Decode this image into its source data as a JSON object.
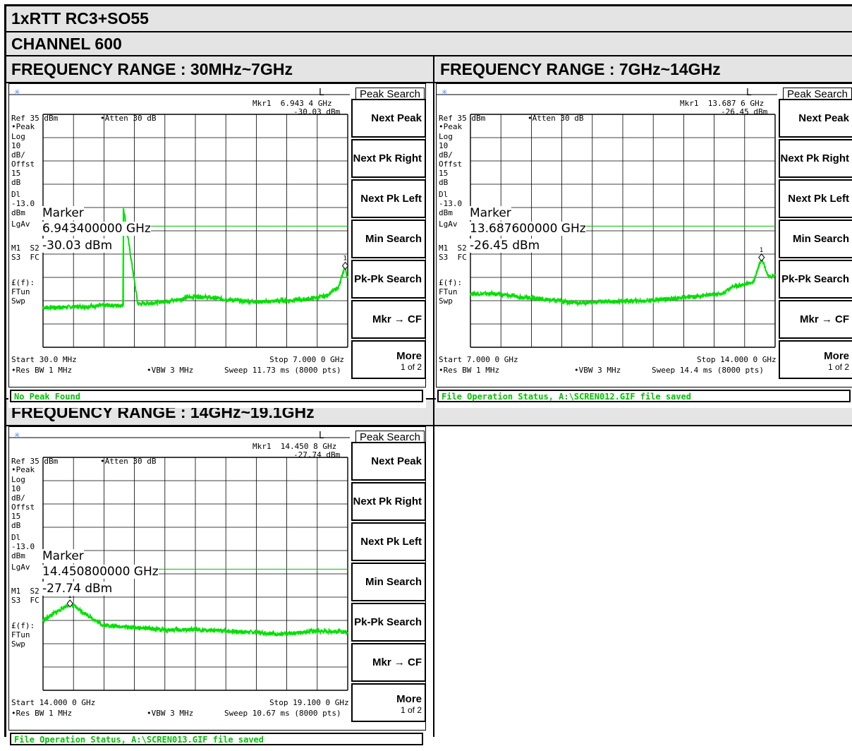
{
  "title": "1xRTT RC3+SO55",
  "channel": "CHANNEL 600",
  "range_titles": [
    "FREQUENCY RANGE : 30MHz~7GHz",
    "FREQUENCY RANGE : 7GHz~14GHz",
    "FREQUENCY RANGE : 14GHz~19.1GHz"
  ],
  "softkeys": {
    "title": "Peak Search",
    "items": [
      "Next Peak",
      "Next Pk Right",
      "Next Pk Left",
      "Min Search",
      "Pk-Pk Search",
      "Mkr → CF"
    ],
    "more": "More",
    "more_sub": "1 of 2"
  },
  "left_labels": {
    "peak": "•Peak",
    "log": "Log",
    "ten": "10",
    "dbdiv": "dB/",
    "offst": "Offst",
    "fifteen": "15",
    "db": "dB",
    "dl": "Dl",
    "dlval": "-13.0",
    "dbm": "dBm",
    "lgav": "LgAv",
    "m1s2": "M1  S2",
    "s3fc": "S3  FC",
    "ff": "£(f):",
    "ftun": "FTun",
    "swp": "Swp"
  },
  "L_label": "L",
  "icon": "sun-icon",
  "colors": {
    "trace": "#00e000",
    "display_line": "#00c000",
    "grid": "#000000",
    "status": "#00c000",
    "header_bg": "#e4e4e4"
  },
  "screens": [
    {
      "ref": "Ref 35 dBm",
      "atten": "•Atten 30 dB",
      "mkr_line1": "Mkr1  6.943 4 GHz",
      "mkr_line2": "-30.03 dBm",
      "marker_label": "Marker",
      "marker_freq": "6.943400000 GHz",
      "marker_amp": "-30.03 dBm",
      "marker_num": "1",
      "start": "Start 30.0 MHz",
      "stop": "Stop 7.000 0 GHz",
      "resbw": "•Res BW 1 MHz",
      "vbw": "•VBW 3 MHz",
      "sweep": "Sweep 11.73 ms (8000 pts)",
      "status": "No Peak Found"
    },
    {
      "ref": "Ref 35 dBm",
      "atten": "•Atten 30 dB",
      "mkr_line1": "Mkr1  13.687 6 GHz",
      "mkr_line2": "-26.45 dBm",
      "marker_label": "Marker",
      "marker_freq": "13.687600000 GHz",
      "marker_amp": "-26.45 dBm",
      "marker_num": "1",
      "start": "Start 7.000 0 GHz",
      "stop": "Stop 14.000 0 GHz",
      "resbw": "•Res BW 1 MHz",
      "vbw": "•VBW 3 MHz",
      "sweep": "Sweep 14.4 ms (8000 pts)",
      "status": "File Operation Status, A:\\SCREN012.GIF file saved"
    },
    {
      "ref": "Ref 35 dBm",
      "atten": "•Atten 30 dB",
      "mkr_line1": "Mkr1  14.450 8 GHz",
      "mkr_line2": "-27.74 dBm",
      "marker_label": "Marker",
      "marker_freq": "14.450800000 GHz",
      "marker_amp": "-27.74 dBm",
      "marker_num": "1",
      "start": "Start 14.000 0 GHz",
      "stop": "Stop 19.100 0 GHz",
      "resbw": "•Res BW 1 MHz",
      "vbw": "•VBW 3 MHz",
      "sweep": "Sweep 10.67 ms (8000 pts)",
      "status": "File Operation Status, A:\\SCREN013.GIF file saved"
    }
  ],
  "chart_data": [
    {
      "type": "line",
      "xlabel": "",
      "ylabel": "",
      "xlim": [
        0.03,
        7.0
      ],
      "ylim": [
        -65,
        35
      ],
      "x_unit": "GHz",
      "y_unit": "dBm",
      "log_scale": "10 dB/div",
      "display_line": -13.0,
      "grid": true,
      "series": [
        {
          "x": [
            0.03,
            1.0,
            1.5,
            1.86,
            1.87,
            2.2,
            3.0,
            3.5,
            4.0,
            4.5,
            5.0,
            5.5,
            6.0,
            6.5,
            6.8,
            6.94,
            7.0
          ],
          "y": [
            -48,
            -47.5,
            -47,
            -47,
            -5,
            -46.5,
            -45,
            -43,
            -44,
            -45,
            -45.5,
            -45,
            -44.5,
            -43,
            -39,
            -30.03,
            -36
          ]
        }
      ],
      "marker": {
        "x": 6.9434,
        "y": -30.03
      }
    },
    {
      "type": "line",
      "xlabel": "",
      "ylabel": "",
      "xlim": [
        7.0,
        14.0
      ],
      "ylim": [
        -65,
        35
      ],
      "x_unit": "GHz",
      "y_unit": "dBm",
      "log_scale": "10 dB/div",
      "display_line": -13.0,
      "grid": true,
      "series": [
        {
          "x": [
            7.0,
            7.5,
            8.0,
            9.0,
            9.5,
            10.0,
            11.0,
            12.0,
            12.8,
            13.0,
            13.3,
            13.5,
            13.69,
            13.85,
            14.0
          ],
          "y": [
            -42,
            -42,
            -43,
            -45,
            -46,
            -45.5,
            -45,
            -43.5,
            -42,
            -39,
            -38,
            -37,
            -26.45,
            -35,
            -34
          ]
        }
      ],
      "marker": {
        "x": 13.6876,
        "y": -26.45
      }
    },
    {
      "type": "line",
      "xlabel": "",
      "ylabel": "",
      "xlim": [
        14.0,
        19.1
      ],
      "ylim": [
        -65,
        35
      ],
      "x_unit": "GHz",
      "y_unit": "dBm",
      "log_scale": "10 dB/div",
      "display_line": -13.0,
      "grid": true,
      "series": [
        {
          "x": [
            14.0,
            14.45,
            15.0,
            15.5,
            16.0,
            16.5,
            17.0,
            17.5,
            18.0,
            18.5,
            19.1
          ],
          "y": [
            -35,
            -27.74,
            -37,
            -38,
            -39,
            -39,
            -39.5,
            -40,
            -41,
            -39.5,
            -40
          ]
        }
      ],
      "marker": {
        "x": 14.4508,
        "y": -27.74
      }
    }
  ]
}
